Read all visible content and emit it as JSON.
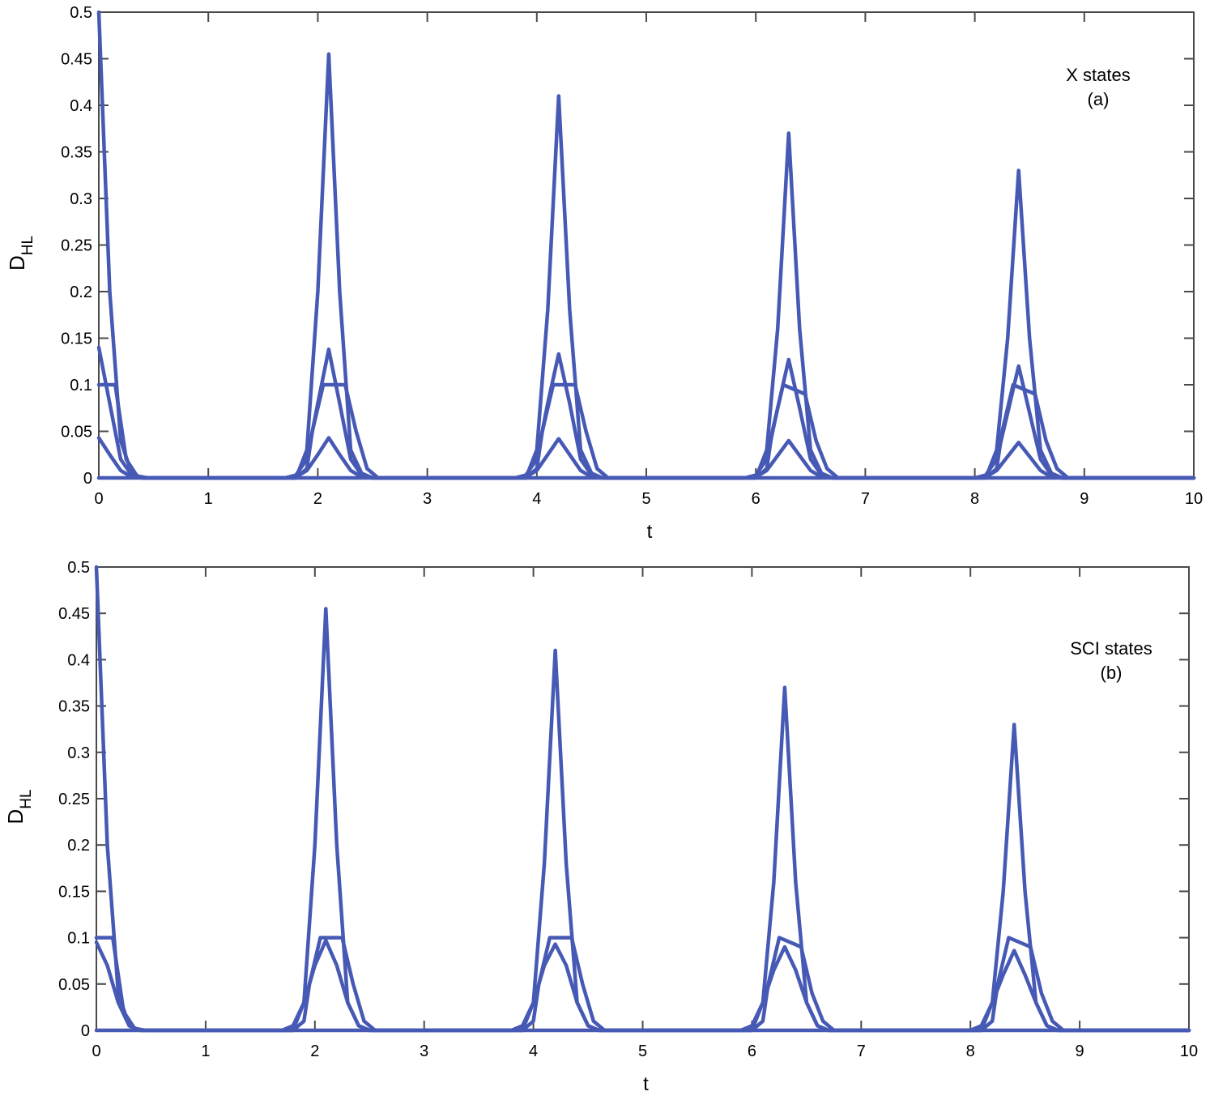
{
  "chart_data": [
    {
      "type": "line",
      "panel": "a",
      "annotation": [
        "X states",
        "(a)"
      ],
      "xlabel": "t",
      "ylabel_main": "D",
      "ylabel_sub": "HL",
      "xlim": [
        0,
        10
      ],
      "ylim": [
        0,
        0.5
      ],
      "xticks": [
        "0",
        "1",
        "2",
        "3",
        "4",
        "5",
        "6",
        "7",
        "8",
        "9",
        "10"
      ],
      "yticks": [
        "0",
        "0.05",
        "0.1",
        "0.15",
        "0.2",
        "0.25",
        "0.3",
        "0.35",
        "0.4",
        "0.45",
        "0.5"
      ],
      "color": "#4659b4",
      "series": [
        {
          "x": [
            0,
            0.1,
            0.2,
            0.3,
            0.4,
            1.8,
            1.9,
            2.0,
            2.1,
            2.2,
            2.3,
            2.4,
            2.5,
            3.9,
            4.0,
            4.1,
            4.2,
            4.3,
            4.4,
            4.5,
            4.6,
            6.0,
            6.1,
            6.2,
            6.3,
            6.4,
            6.5,
            6.6,
            6.7,
            8.1,
            8.2,
            8.3,
            8.4,
            8.5,
            8.6,
            8.7,
            8.8,
            10
          ],
          "y": [
            0.5,
            0.2,
            0.04,
            0.005,
            0,
            0,
            0.03,
            0.2,
            0.455,
            0.2,
            0.03,
            0.005,
            0,
            0,
            0.03,
            0.18,
            0.41,
            0.18,
            0.03,
            0.005,
            0,
            0,
            0.03,
            0.16,
            0.37,
            0.16,
            0.03,
            0.005,
            0,
            0,
            0.03,
            0.15,
            0.33,
            0.15,
            0.03,
            0.005,
            0,
            0
          ]
        },
        {
          "x": [
            0,
            0.1,
            0.2,
            0.3,
            0.4,
            1.7,
            1.8,
            1.9,
            2.0,
            2.1,
            2.2,
            2.3,
            2.4,
            2.5,
            3.8,
            3.9,
            4.0,
            4.1,
            4.2,
            4.3,
            4.4,
            4.5,
            4.6,
            5.9,
            6.0,
            6.1,
            6.2,
            6.3,
            6.4,
            6.5,
            6.6,
            6.7,
            8.0,
            8.1,
            8.2,
            8.3,
            8.4,
            8.5,
            8.6,
            8.7,
            8.8,
            10
          ],
          "y": [
            0.14,
            0.08,
            0.02,
            0.003,
            0,
            0,
            0.003,
            0.02,
            0.08,
            0.138,
            0.08,
            0.02,
            0.003,
            0,
            0,
            0.003,
            0.02,
            0.08,
            0.133,
            0.08,
            0.02,
            0.003,
            0,
            0,
            0.003,
            0.02,
            0.075,
            0.127,
            0.075,
            0.02,
            0.003,
            0,
            0,
            0.003,
            0.02,
            0.07,
            0.12,
            0.07,
            0.02,
            0.003,
            0,
            0
          ]
        },
        {
          "x": [
            0,
            0.05,
            0.15,
            0.25,
            0.35,
            0.45,
            1.8,
            1.9,
            1.95,
            2.05,
            2.25,
            2.35,
            2.45,
            2.55,
            3.9,
            4.0,
            4.05,
            4.15,
            4.35,
            4.45,
            4.55,
            4.65,
            6.0,
            6.1,
            6.15,
            6.25,
            6.45,
            6.55,
            6.65,
            6.75,
            8.1,
            8.2,
            8.25,
            8.35,
            8.55,
            8.65,
            8.75,
            8.85,
            10
          ],
          "y": [
            0.1,
            0.1,
            0.1,
            0.02,
            0.002,
            0,
            0,
            0.01,
            0.05,
            0.1,
            0.1,
            0.05,
            0.01,
            0,
            0,
            0.01,
            0.05,
            0.1,
            0.1,
            0.05,
            0.01,
            0,
            0,
            0.01,
            0.05,
            0.1,
            0.09,
            0.04,
            0.01,
            0,
            0,
            0.01,
            0.05,
            0.1,
            0.09,
            0.04,
            0.01,
            0,
            0
          ]
        },
        {
          "x": [
            0,
            0.1,
            0.2,
            0.3,
            0.4,
            1.7,
            1.8,
            1.9,
            2.0,
            2.1,
            2.2,
            2.3,
            2.4,
            2.5,
            3.8,
            3.9,
            4.0,
            4.1,
            4.2,
            4.3,
            4.4,
            4.5,
            4.6,
            5.9,
            6.0,
            6.1,
            6.2,
            6.3,
            6.4,
            6.5,
            6.6,
            6.7,
            8.0,
            8.1,
            8.2,
            8.3,
            8.4,
            8.5,
            8.6,
            8.7,
            8.8,
            10
          ],
          "y": [
            0.043,
            0.025,
            0.008,
            0.001,
            0,
            0,
            0.001,
            0.008,
            0.025,
            0.043,
            0.025,
            0.008,
            0.001,
            0,
            0,
            0.001,
            0.008,
            0.025,
            0.042,
            0.025,
            0.008,
            0.001,
            0,
            0,
            0.001,
            0.008,
            0.024,
            0.04,
            0.024,
            0.008,
            0.001,
            0,
            0,
            0.001,
            0.008,
            0.023,
            0.038,
            0.023,
            0.008,
            0.001,
            0,
            0
          ]
        },
        {
          "x": [
            0,
            10
          ],
          "y": [
            0,
            0
          ]
        }
      ]
    },
    {
      "type": "line",
      "panel": "b",
      "annotation": [
        "SCI states",
        "(b)"
      ],
      "xlabel": "t",
      "ylabel_main": "D",
      "ylabel_sub": "HL",
      "xlim": [
        0,
        10
      ],
      "ylim": [
        0,
        0.5
      ],
      "xticks": [
        "0",
        "1",
        "2",
        "3",
        "4",
        "5",
        "6",
        "7",
        "8",
        "9",
        "10"
      ],
      "yticks": [
        "0",
        "0.05",
        "0.1",
        "0.15",
        "0.2",
        "0.25",
        "0.3",
        "0.35",
        "0.4",
        "0.45",
        "0.5"
      ],
      "color": "#4659b4",
      "series": [
        {
          "x": [
            0,
            0.1,
            0.2,
            0.3,
            0.4,
            1.8,
            1.9,
            2.0,
            2.1,
            2.2,
            2.3,
            2.4,
            2.5,
            3.9,
            4.0,
            4.1,
            4.2,
            4.3,
            4.4,
            4.5,
            4.6,
            6.0,
            6.1,
            6.2,
            6.3,
            6.4,
            6.5,
            6.6,
            6.7,
            8.1,
            8.2,
            8.3,
            8.4,
            8.5,
            8.6,
            8.7,
            8.8,
            10
          ],
          "y": [
            0.5,
            0.2,
            0.04,
            0.005,
            0,
            0,
            0.03,
            0.2,
            0.455,
            0.2,
            0.03,
            0.005,
            0,
            0,
            0.03,
            0.18,
            0.41,
            0.18,
            0.03,
            0.005,
            0,
            0,
            0.03,
            0.16,
            0.37,
            0.16,
            0.03,
            0.005,
            0,
            0,
            0.03,
            0.15,
            0.33,
            0.15,
            0.03,
            0.005,
            0,
            0
          ]
        },
        {
          "x": [
            0,
            0.05,
            0.15,
            0.25,
            0.35,
            0.45,
            1.8,
            1.9,
            1.95,
            2.05,
            2.25,
            2.35,
            2.45,
            2.55,
            3.9,
            4.0,
            4.05,
            4.15,
            4.35,
            4.45,
            4.55,
            4.65,
            6.0,
            6.1,
            6.15,
            6.25,
            6.45,
            6.55,
            6.65,
            6.75,
            8.1,
            8.2,
            8.25,
            8.35,
            8.55,
            8.65,
            8.75,
            8.85,
            10
          ],
          "y": [
            0.1,
            0.1,
            0.1,
            0.02,
            0.002,
            0,
            0,
            0.01,
            0.05,
            0.1,
            0.1,
            0.05,
            0.01,
            0,
            0,
            0.01,
            0.05,
            0.1,
            0.1,
            0.05,
            0.01,
            0,
            0,
            0.01,
            0.05,
            0.1,
            0.09,
            0.04,
            0.01,
            0,
            0,
            0.01,
            0.05,
            0.1,
            0.09,
            0.04,
            0.01,
            0,
            0
          ]
        },
        {
          "x": [
            0,
            0.1,
            0.2,
            0.3,
            0.4,
            1.7,
            1.8,
            1.9,
            2.0,
            2.1,
            2.2,
            2.3,
            2.4,
            2.5,
            3.8,
            3.9,
            4.0,
            4.1,
            4.2,
            4.3,
            4.4,
            4.5,
            4.6,
            5.9,
            6.0,
            6.1,
            6.2,
            6.3,
            6.4,
            6.5,
            6.6,
            6.7,
            8.0,
            8.1,
            8.2,
            8.3,
            8.4,
            8.5,
            8.6,
            8.7,
            8.8,
            10
          ],
          "y": [
            0.095,
            0.07,
            0.03,
            0.005,
            0,
            0,
            0.005,
            0.03,
            0.07,
            0.097,
            0.07,
            0.03,
            0.005,
            0,
            0,
            0.005,
            0.03,
            0.07,
            0.093,
            0.07,
            0.03,
            0.005,
            0,
            0,
            0.005,
            0.03,
            0.065,
            0.09,
            0.065,
            0.03,
            0.005,
            0,
            0,
            0.005,
            0.03,
            0.06,
            0.086,
            0.06,
            0.03,
            0.005,
            0,
            0
          ]
        },
        {
          "x": [
            0,
            10
          ],
          "y": [
            0,
            0
          ]
        }
      ]
    }
  ]
}
